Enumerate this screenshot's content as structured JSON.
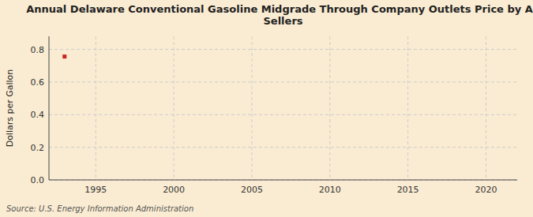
{
  "chart_data": {
    "type": "scatter",
    "title": "Annual Delaware Conventional Gasoline Midgrade Through Company Outlets Price by All\nSellers",
    "y_label": "Dollars per Gallon",
    "source": "Source: U.S. Energy Information Administration",
    "x": [
      1993
    ],
    "values": [
      0.756
    ],
    "color": "#cc2222",
    "marker": "square",
    "xlim": [
      1992,
      2022
    ],
    "ylim": [
      0.0,
      0.88
    ],
    "xticks": [
      1995,
      2000,
      2005,
      2010,
      2015,
      2020
    ],
    "yticks": [
      {
        "value": 0.0,
        "label": "0.0"
      },
      0.2,
      0.4,
      0.6,
      0.8
    ],
    "grid": true
  }
}
